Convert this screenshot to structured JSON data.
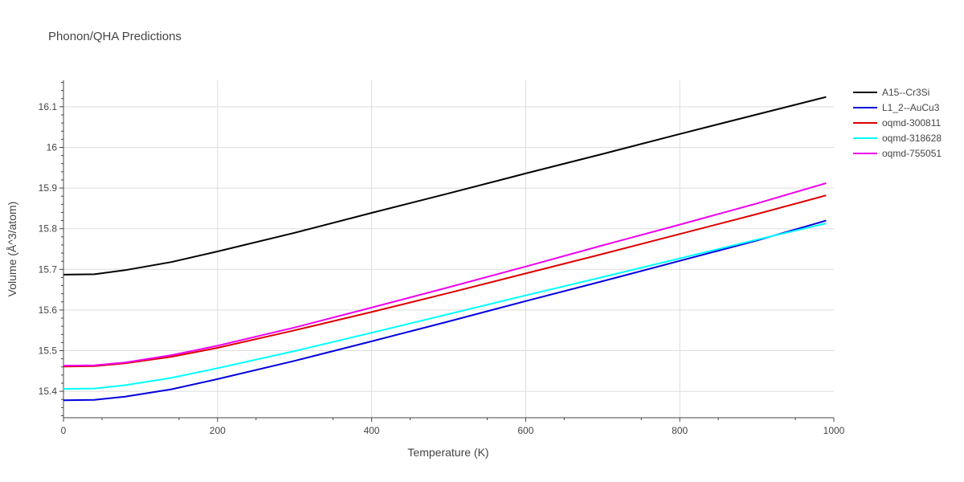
{
  "chart_data": {
    "type": "line",
    "title": "Phonon/QHA Predictions",
    "xlabel": "Temperature (K)",
    "ylabel": "Volume (Å^3/atom)",
    "xlim": [
      0,
      1000
    ],
    "ylim": [
      15.335,
      16.165
    ],
    "xticks": [
      0,
      200,
      400,
      600,
      800,
      1000
    ],
    "xtick_labels": [
      "0",
      "200",
      "400",
      "600",
      "800",
      "1000"
    ],
    "yticks": [
      15.4,
      15.5,
      15.6,
      15.7,
      15.8,
      15.9,
      16.0,
      16.1
    ],
    "ytick_labels": [
      "15.4",
      "15.5",
      "15.6",
      "15.7",
      "15.8",
      "15.9",
      "16",
      "16.1"
    ],
    "grid": true,
    "legend_position": "top-right",
    "series": [
      {
        "name": "A15--Cr3Si",
        "color": "#000000",
        "x": [
          0,
          40,
          80,
          140,
          200,
          300,
          400,
          500,
          600,
          700,
          800,
          900,
          990
        ],
        "y": [
          15.687,
          15.688,
          15.698,
          15.718,
          15.744,
          15.79,
          15.839,
          15.887,
          15.936,
          15.984,
          16.033,
          16.081,
          16.124
        ]
      },
      {
        "name": "L1_2--AuCu3",
        "color": "#0000dd",
        "x": [
          0,
          40,
          80,
          140,
          200,
          300,
          400,
          500,
          600,
          700,
          800,
          900,
          990
        ],
        "y": [
          15.378,
          15.379,
          15.387,
          15.405,
          15.43,
          15.475,
          15.523,
          15.572,
          15.622,
          15.671,
          15.721,
          15.771,
          15.82
        ]
      },
      {
        "name": "oqmd-300811",
        "color": "#dd0000",
        "x": [
          0,
          40,
          80,
          140,
          200,
          300,
          400,
          500,
          600,
          700,
          800,
          900,
          990
        ],
        "y": [
          15.461,
          15.462,
          15.469,
          15.485,
          15.507,
          15.55,
          15.595,
          15.642,
          15.69,
          15.738,
          15.787,
          15.836,
          15.882
        ]
      },
      {
        "name": "oqmd-318628",
        "color": "#00ffff",
        "x": [
          0,
          40,
          80,
          140,
          200,
          300,
          400,
          500,
          600,
          700,
          800,
          900,
          990
        ],
        "y": [
          15.406,
          15.407,
          15.415,
          15.433,
          15.457,
          15.499,
          15.544,
          15.59,
          15.636,
          15.681,
          15.727,
          15.773,
          15.813
        ]
      },
      {
        "name": "oqmd-755051",
        "color": "#ee00ee",
        "x": [
          0,
          40,
          80,
          140,
          200,
          300,
          400,
          500,
          600,
          700,
          800,
          900,
          990
        ],
        "y": [
          15.463,
          15.464,
          15.471,
          15.489,
          15.512,
          15.557,
          15.606,
          15.656,
          15.707,
          15.759,
          15.81,
          15.862,
          15.912
        ]
      }
    ]
  }
}
